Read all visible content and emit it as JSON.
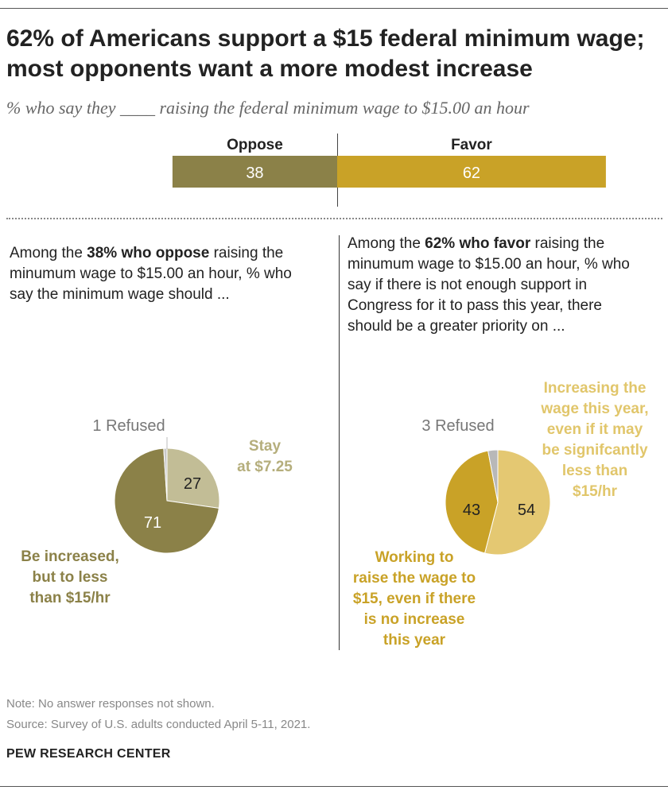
{
  "header": {
    "title": "62% of Americans support a $15 federal minimum wage; most opponents want a more modest increase",
    "subtitle": "% who say they ____ raising the federal minimum wage to $15.00 an hour"
  },
  "left_panel": {
    "intro_pre": "Among the ",
    "intro_bold": "38% who oppose",
    "intro_post": " raising the minumum wage to $15.00 an hour, % who say the minimum wage should ..."
  },
  "right_panel": {
    "intro_pre": "Among the ",
    "intro_bold": "62% who favor",
    "intro_post": " raising the minumum wage to $15.00 an hour, % who say if there is not enough support in Congress for it to pass this year,  there should be a greater priority on ..."
  },
  "footer": {
    "note": "Note: No answer responses not shown.",
    "source": "Source: Survey of U.S. adults conducted April 5-11, 2021.",
    "brand": "PEW RESEARCH CENTER"
  },
  "chart_data": [
    {
      "type": "bar",
      "orientation": "horizontal-diverging",
      "categories": [
        "Oppose",
        "Favor"
      ],
      "values": [
        38,
        62
      ],
      "colors": [
        "#8b8148",
        "#c9a227"
      ],
      "label_color": "#ffffff"
    },
    {
      "type": "pie",
      "refused_label": "1 Refused",
      "slices": [
        {
          "label": "Stay at $7.25",
          "label_lines": [
            "Stay",
            "at $7.25"
          ],
          "value": 27,
          "color": "#c2bd96",
          "label_color": "#b5ae7c",
          "value_color": "#222222"
        },
        {
          "label": "Be increased, but to less than $15/hr",
          "label_lines": [
            "Be increased,",
            "but to less",
            "than $15/hr"
          ],
          "value": 71,
          "color": "#8b8148",
          "label_color": "#8b8148",
          "value_color": "#ffffff"
        },
        {
          "label": "Refused",
          "value": 1,
          "color": "#c8c8c8"
        }
      ]
    },
    {
      "type": "pie",
      "refused_label": "3 Refused",
      "slices": [
        {
          "label": "Increasing the wage this year, even if it may be signifcantly less than $15/hr",
          "label_lines": [
            "Increasing the",
            "wage this year,",
            "even if it may",
            "be signifcantly",
            "less than",
            "$15/hr"
          ],
          "value": 54,
          "color": "#e4c872",
          "label_color": "#e1c66b",
          "value_color": "#222222"
        },
        {
          "label": "Working to raise the wage to $15, even if there is no increase this year",
          "label_lines": [
            "Working to",
            "raise the wage to",
            "$15, even if there",
            "is no increase",
            "this year"
          ],
          "value": 43,
          "color": "#c9a227",
          "label_color": "#c9a227",
          "value_color": "#222222"
        },
        {
          "label": "Refused",
          "value": 3,
          "color": "#b8b8b8"
        }
      ]
    }
  ]
}
